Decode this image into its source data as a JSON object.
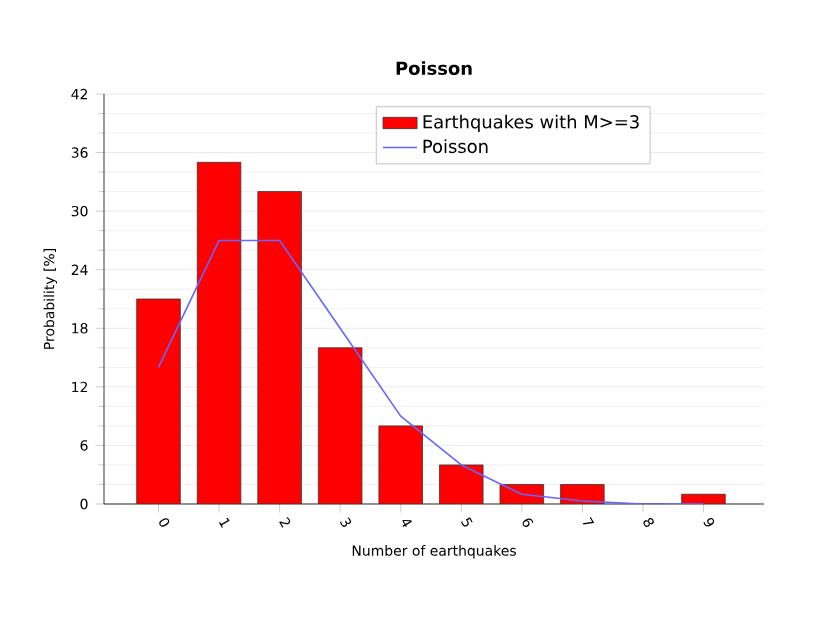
{
  "chart_data": {
    "type": "bar",
    "title": "Poisson",
    "xlabel": "Number of earthquakes",
    "ylabel": "Probability [%]",
    "categories": [
      "0",
      "1",
      "2",
      "3",
      "4",
      "5",
      "6",
      "7",
      "8",
      "9"
    ],
    "series": [
      {
        "name": "Earthquakes with M>=3",
        "color": "#ff0000",
        "values": [
          21,
          35,
          32,
          16,
          8,
          4,
          2,
          2,
          0,
          1
        ]
      },
      {
        "name": "Poisson",
        "type": "line",
        "color": "#6666ff",
        "values": [
          14,
          27,
          27,
          18,
          9,
          4,
          1,
          0.3,
          0,
          0
        ]
      }
    ],
    "ylim": [
      0,
      42
    ],
    "yticks": [
      0,
      6,
      12,
      18,
      24,
      30,
      36,
      42
    ],
    "grid": "y",
    "legend": "top",
    "marker": "none",
    "line_style": "solid"
  }
}
